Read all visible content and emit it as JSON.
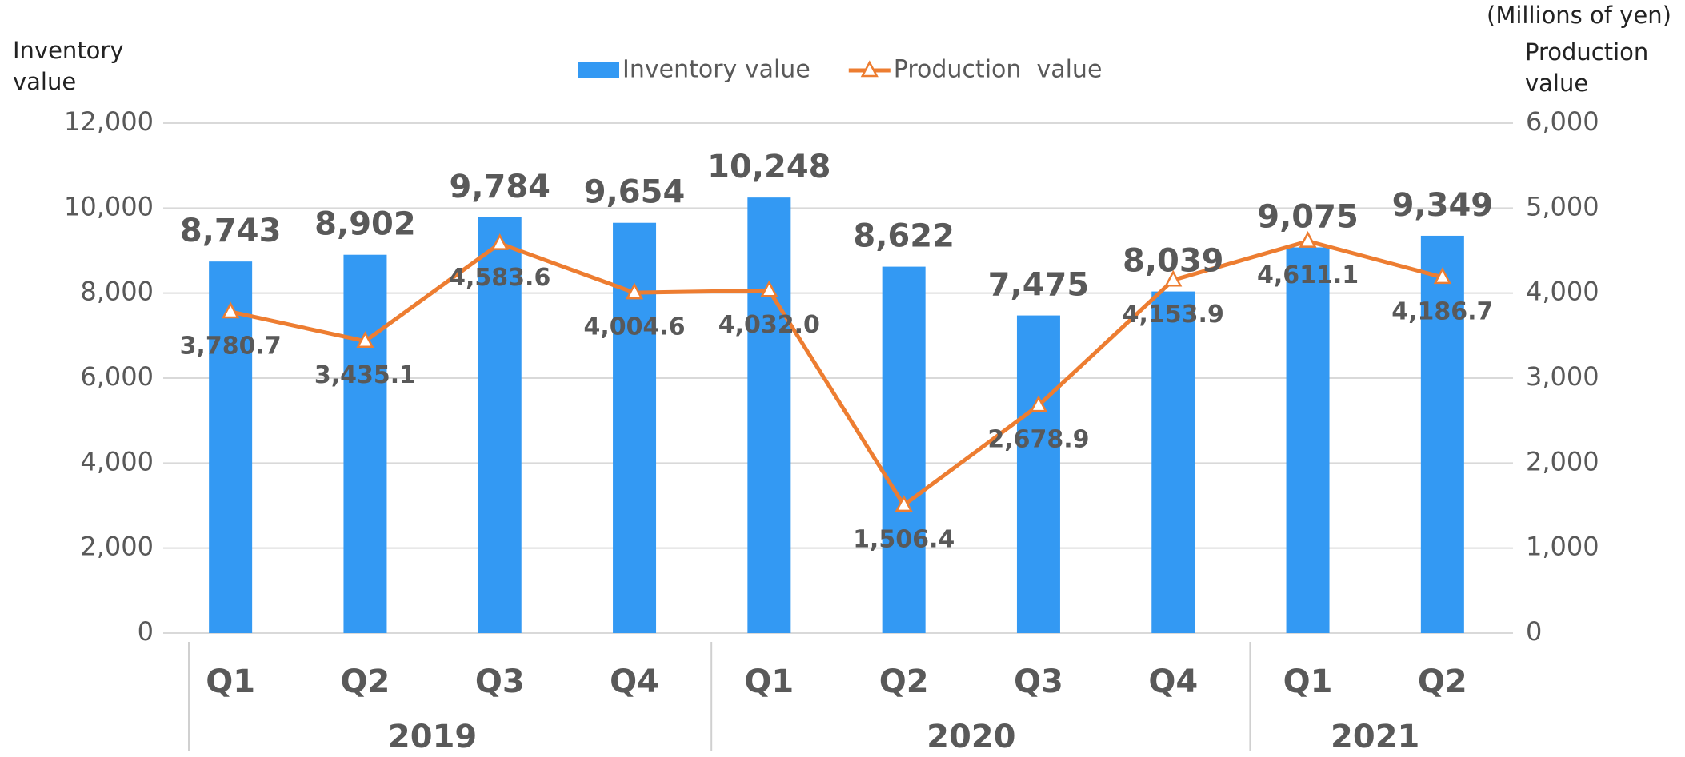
{
  "chart_data": {
    "type": "bar_line",
    "unit_note": "(Millions of yen)",
    "y_label": "Inventory value",
    "y2_label": "Production value",
    "categories": [
      "Q1",
      "Q2",
      "Q3",
      "Q4",
      "Q1",
      "Q2",
      "Q3",
      "Q4",
      "Q1",
      "Q2"
    ],
    "groups": [
      {
        "name": "2019",
        "count": 4
      },
      {
        "name": "2020",
        "count": 4
      },
      {
        "name": "2021",
        "count": 2
      }
    ],
    "series": [
      {
        "name": "Inventory value",
        "type": "bar",
        "color": "#3399f3",
        "values": [
          8743,
          8902,
          9784,
          9654,
          10248,
          8622,
          7475,
          8039,
          9075,
          9349
        ],
        "value_labels": [
          "8,743",
          "8,902",
          "9,784",
          "9,654",
          "10,248",
          "8,622",
          "7,475",
          "8,039",
          "9,075",
          "9,349"
        ]
      },
      {
        "name": "Production  value",
        "type": "line",
        "axis": "y2",
        "color": "#ed7d31",
        "values": [
          3780.7,
          3435.1,
          4583.6,
          4004.6,
          4032.0,
          1506.4,
          2678.9,
          4153.9,
          4611.1,
          4186.7
        ],
        "value_labels": [
          "3,780.7",
          "3,435.1",
          "4,583.6",
          "4,004.6",
          "4,032.0",
          "1,506.4",
          "2,678.9",
          "4,153.9",
          "4,611.1",
          "4,186.7"
        ]
      }
    ],
    "ylim": [
      0,
      12000
    ],
    "yticks": [
      0,
      {
        "value": 2000,
        "label": "2,000"
      },
      {
        "value": 4000,
        "label": "4,000"
      },
      {
        "value": 6000,
        "label": "6,000"
      },
      {
        "value": 8000,
        "label": "8,000"
      },
      {
        "value": 10000,
        "label": "10,000"
      },
      {
        "value": 12000,
        "label": "12,000"
      }
    ],
    "y2lim": [
      0,
      6000
    ],
    "y2ticks": [
      0,
      {
        "value": 1000,
        "label": "1,000"
      },
      {
        "value": 2000,
        "label": "2,000"
      },
      {
        "value": 3000,
        "label": "3,000"
      },
      {
        "value": 4000,
        "label": "4,000"
      },
      {
        "value": 5000,
        "label": "5,000"
      },
      {
        "value": 6000,
        "label": "6,000"
      }
    ],
    "grid": true,
    "legend": "top"
  }
}
